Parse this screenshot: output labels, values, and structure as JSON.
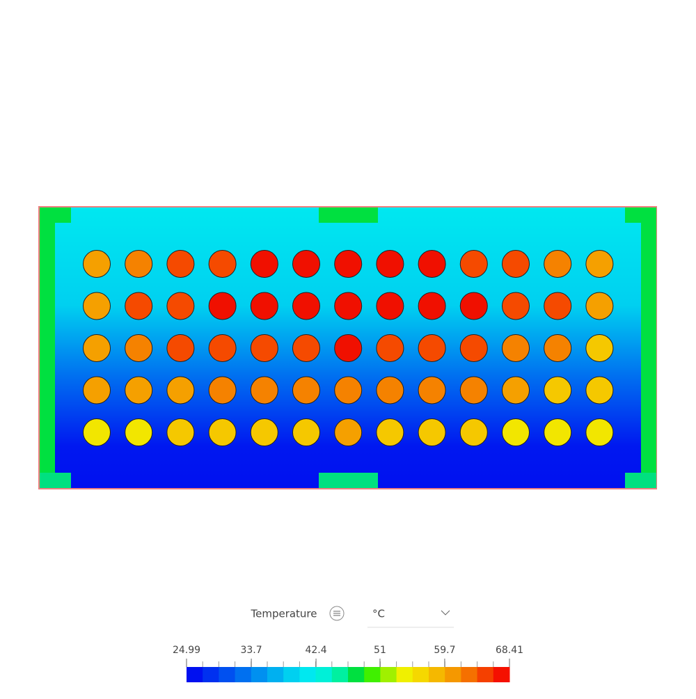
{
  "legend": {
    "title": "Temperature",
    "unit": "°C",
    "range": [
      24.99,
      68.41
    ],
    "ticks": [
      24.99,
      33.7,
      42.4,
      51,
      59.7,
      68.41
    ],
    "colors": [
      "#0010f0",
      "#0030f0",
      "#0050f0",
      "#0070f0",
      "#0090f0",
      "#00b0f0",
      "#00d0f0",
      "#00e8f0",
      "#00f0d8",
      "#00f0a0",
      "#00e040",
      "#40f000",
      "#a0f000",
      "#f0f000",
      "#f5d800",
      "#f5b800",
      "#f59800",
      "#f57000",
      "#f54000",
      "#f51000"
    ]
  },
  "field": {
    "rows": [
      [
        "#f5a000",
        "#f58200",
        "#f54a00",
        "#f54a00",
        "#f01000",
        "#f01000",
        "#f01000",
        "#f01000",
        "#f01000",
        "#f54a00",
        "#f54a00",
        "#f58200",
        "#f5a000"
      ],
      [
        "#f5a000",
        "#f54a00",
        "#f54a00",
        "#f01000",
        "#f01000",
        "#f01000",
        "#f01000",
        "#f01000",
        "#f01000",
        "#f01000",
        "#f54a00",
        "#f54a00",
        "#f5a000"
      ],
      [
        "#f5a000",
        "#f58200",
        "#f54a00",
        "#f54a00",
        "#f54a00",
        "#f54a00",
        "#f01000",
        "#f54a00",
        "#f54a00",
        "#f54a00",
        "#f58200",
        "#f58200",
        "#f5c800"
      ],
      [
        "#f5a000",
        "#f5a000",
        "#f5a000",
        "#f58200",
        "#f58200",
        "#f58200",
        "#f58200",
        "#f58200",
        "#f58200",
        "#f58200",
        "#f5a000",
        "#f5c800",
        "#f5c800"
      ],
      [
        "#f2e600",
        "#f2e600",
        "#f5c800",
        "#f5c800",
        "#f5c800",
        "#f5c800",
        "#f5a000",
        "#f5c800",
        "#f5c800",
        "#f5c800",
        "#f2e600",
        "#f2e600",
        "#f2e600"
      ]
    ]
  }
}
